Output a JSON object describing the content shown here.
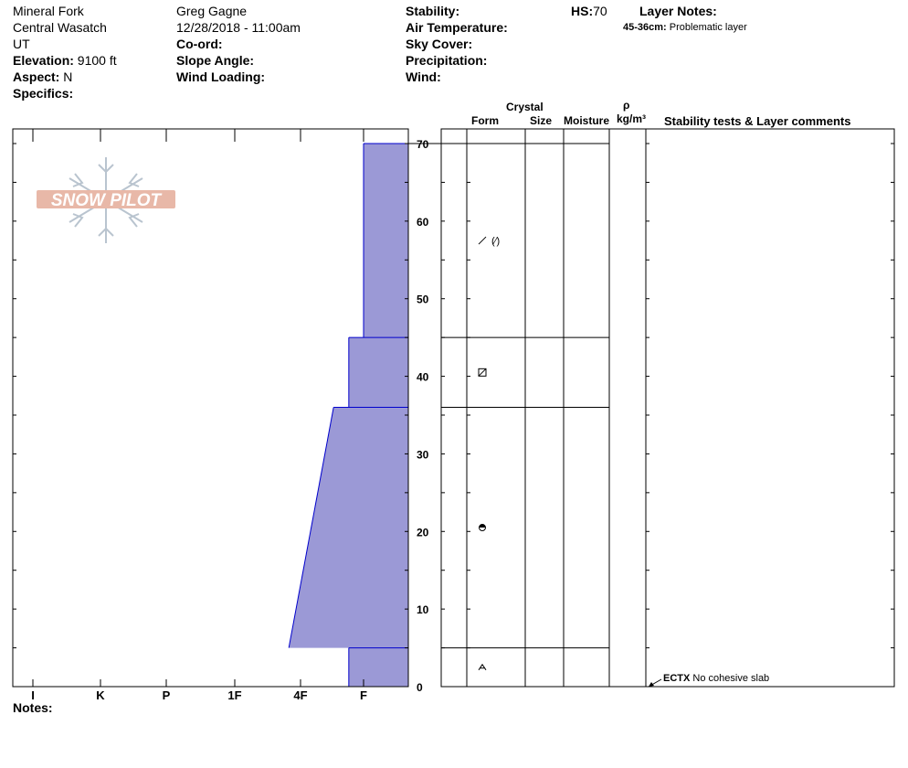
{
  "header": {
    "location": "Mineral Fork",
    "range": "Central Wasatch",
    "state": "UT",
    "elevation_label": "Elevation:",
    "elevation_value": "9100 ft",
    "aspect_label": "Aspect:",
    "aspect_value": "N",
    "specifics_label": "Specifics:",
    "observer": "Greg Gagne",
    "datetime": "12/28/2018 - 11:00am",
    "coord_label": "Co-ord:",
    "slope_label": "Slope Angle:",
    "wind_loading_label": "Wind Loading:",
    "stability_label": "Stability:",
    "air_temp_label": "Air Temperature:",
    "sky_cover_label": "Sky Cover:",
    "precip_label": "Precipitation:",
    "wind_label": "Wind:",
    "hs_label": "HS:",
    "hs_value": "70",
    "layer_notes_label": "Layer Notes:",
    "layer_note_range": "45-36cm:",
    "layer_note_text": "Problematic layer"
  },
  "logo_text": "SNOW PILOT",
  "notes_label": "Notes:",
  "table_headers": {
    "crystal": "Crystal",
    "form": "Form",
    "size": "Size",
    "moisture": "Moisture",
    "rho": "ρ",
    "density_unit": "kg/m³",
    "comments": "Stability tests & Layer comments"
  },
  "stability_test": {
    "code": "ECTX",
    "comment": "No cohesive slab"
  },
  "colors": {
    "hardness_fill": "#9b99d6",
    "hardness_stroke": "#0000cc",
    "logo": "#e8b8a8",
    "logo_flake": "#b9c4cf"
  },
  "chart_data": {
    "type": "snow-profile-hardness",
    "ylabel": "",
    "ylim": [
      0,
      70
    ],
    "yticks": [
      0,
      10,
      20,
      30,
      40,
      50,
      60,
      70
    ],
    "hardness_scale": [
      "I",
      "K",
      "P",
      "1F",
      "4F",
      "F"
    ],
    "layers": [
      {
        "top": 70,
        "bottom": 45,
        "hardness_top": 1.0,
        "hardness_bottom": 1.0,
        "form_icon": "slash-paren-icon"
      },
      {
        "top": 45,
        "bottom": 36,
        "hardness_top": 1.33,
        "hardness_bottom": 1.33,
        "form_icon": "box-slash-icon"
      },
      {
        "top": 36,
        "bottom": 5,
        "hardness_top": 1.67,
        "hardness_bottom": 2.67,
        "form_icon": "half-disc-icon"
      },
      {
        "top": 5,
        "bottom": 0,
        "hardness_top": 1.33,
        "hardness_bottom": 1.33,
        "form_icon": "caret-a-icon"
      }
    ],
    "stability_test_height": 0
  }
}
